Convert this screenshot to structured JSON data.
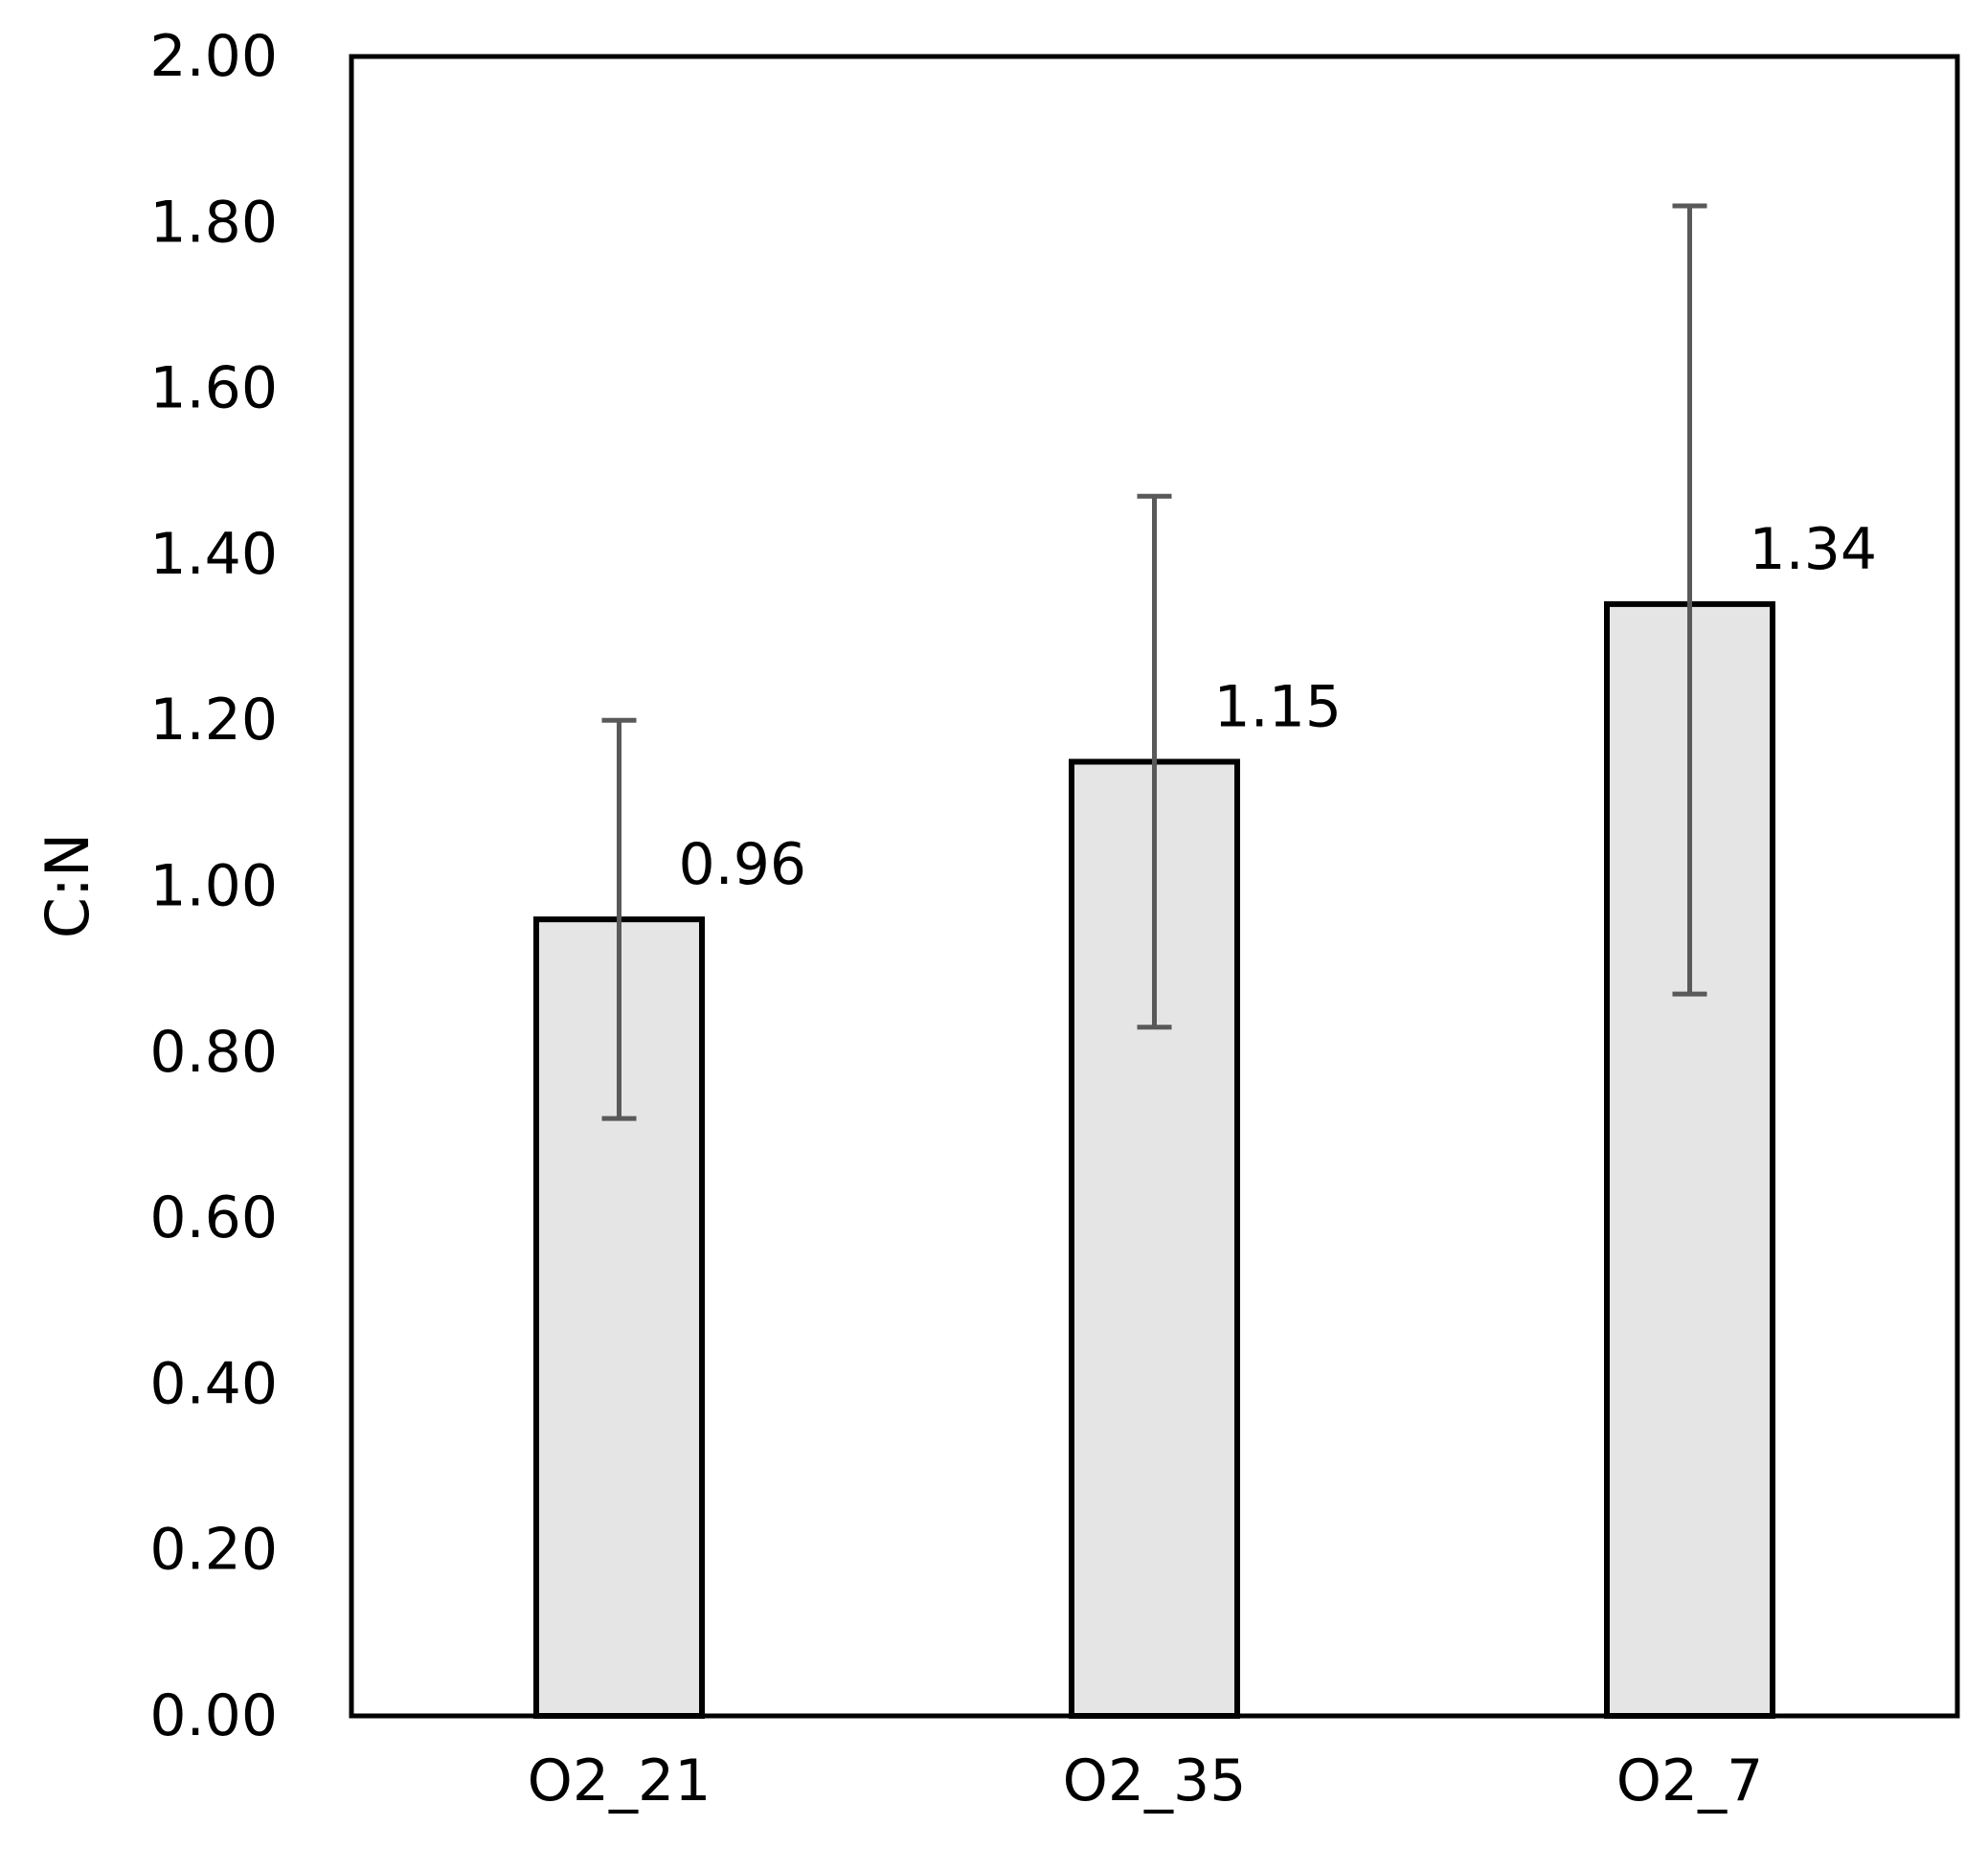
{
  "chart_data": {
    "type": "bar",
    "title": "",
    "xlabel": "",
    "ylabel": "C:N",
    "ylim": [
      0,
      2
    ],
    "ytick_values": [
      0,
      0.2,
      0.4,
      0.6,
      0.8,
      1.0,
      1.2,
      1.4,
      1.6,
      1.8,
      2.0
    ],
    "ytick_labels": [
      "0.00",
      "0.20",
      "0.40",
      "0.60",
      "0.80",
      "1.00",
      "1.20",
      "1.40",
      "1.60",
      "1.80",
      "2.00"
    ],
    "categories": [
      "O2_21",
      "O2_35",
      "O2_7"
    ],
    "values": [
      0.96,
      1.15,
      1.34
    ],
    "data_labels": [
      "0.96",
      "1.15",
      "1.34"
    ],
    "error_low": [
      0.72,
      0.83,
      0.87
    ],
    "error_high": [
      1.2,
      1.47,
      1.82
    ],
    "grid": false,
    "legend": "none",
    "colors": {
      "bar_fill": "#e5e5e5",
      "bar_stroke": "#000000",
      "error_bar": "#595959",
      "frame": "#000000"
    }
  }
}
